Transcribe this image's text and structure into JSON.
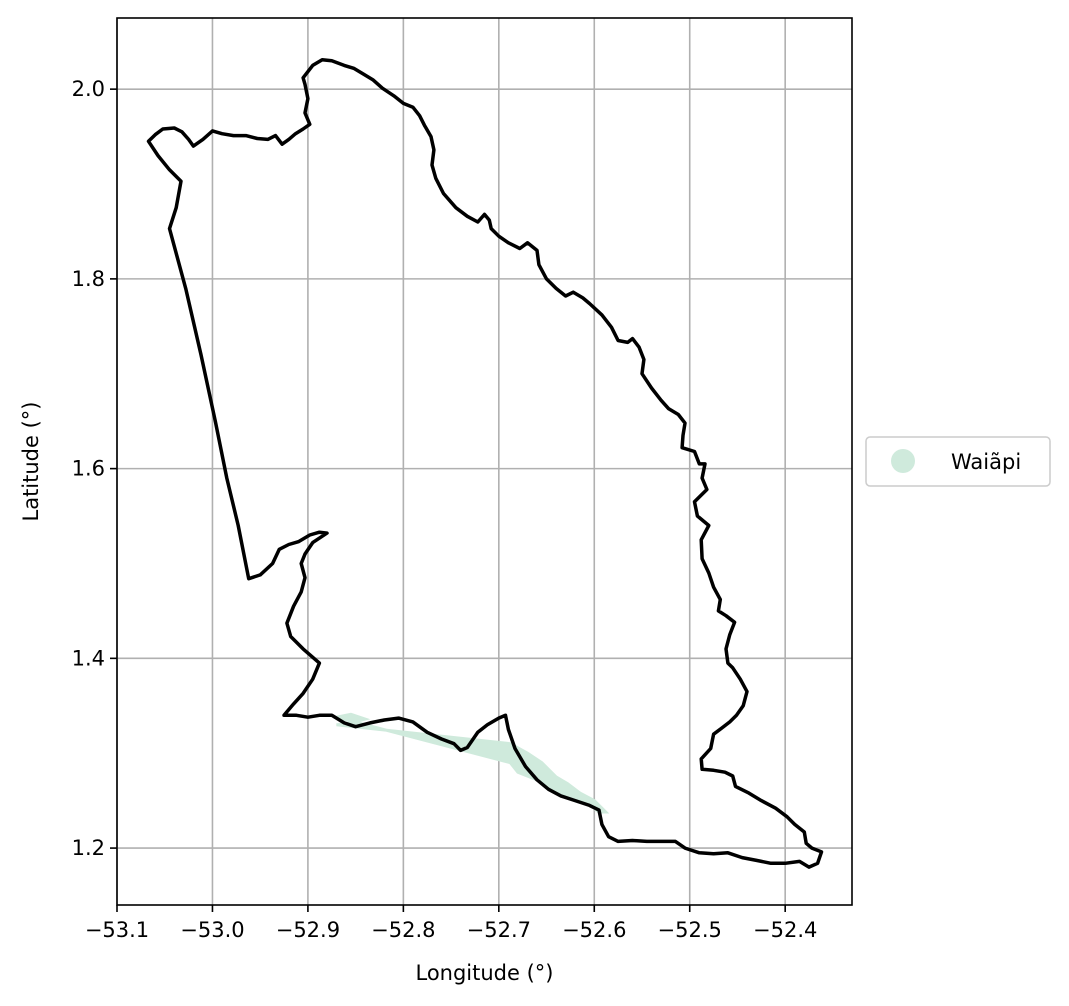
{
  "chart_data": {
    "type": "map",
    "xlabel": "Longitude (°)",
    "ylabel": "Latitude (°)",
    "xlim": [
      -53.1,
      -52.33
    ],
    "ylim": [
      1.14,
      2.075
    ],
    "x_ticks": [
      -53.1,
      -53.0,
      -52.9,
      -52.8,
      -52.7,
      -52.6,
      -52.5,
      -52.4
    ],
    "x_tick_labels": [
      "−53.1",
      "−53.0",
      "−52.9",
      "−52.8",
      "−52.7",
      "−52.6",
      "−52.5",
      "−52.4"
    ],
    "y_ticks": [
      1.2,
      1.4,
      1.6,
      1.8,
      2.0
    ],
    "y_tick_labels": [
      "1.2",
      "1.4",
      "1.6",
      "1.8",
      "2.0"
    ],
    "grid": true,
    "legend": {
      "placement": "center-right-outside",
      "entries": [
        {
          "label": "Waiãpi",
          "color": "#cfeadc",
          "marker": "circle"
        }
      ]
    },
    "boundary": {
      "color": "#000000",
      "coords": [
        [
          -53.067,
          1.945
        ],
        [
          -53.06,
          1.952
        ],
        [
          -53.052,
          1.958
        ],
        [
          -53.04,
          1.959
        ],
        [
          -53.032,
          1.955
        ],
        [
          -53.025,
          1.947
        ],
        [
          -53.02,
          1.94
        ],
        [
          -53.01,
          1.947
        ],
        [
          -53.0,
          1.956
        ],
        [
          -52.99,
          1.953
        ],
        [
          -52.978,
          1.951
        ],
        [
          -52.965,
          1.951
        ],
        [
          -52.953,
          1.948
        ],
        [
          -52.942,
          1.947
        ],
        [
          -52.934,
          1.951
        ],
        [
          -52.927,
          1.942
        ],
        [
          -52.92,
          1.947
        ],
        [
          -52.913,
          1.953
        ],
        [
          -52.905,
          1.958
        ],
        [
          -52.898,
          1.963
        ],
        [
          -52.903,
          1.975
        ],
        [
          -52.9,
          1.99
        ],
        [
          -52.903,
          2.005
        ],
        [
          -52.905,
          2.012
        ],
        [
          -52.895,
          2.025
        ],
        [
          -52.885,
          2.031
        ],
        [
          -52.875,
          2.03
        ],
        [
          -52.862,
          2.025
        ],
        [
          -52.852,
          2.022
        ],
        [
          -52.842,
          2.016
        ],
        [
          -52.832,
          2.01
        ],
        [
          -52.822,
          2.001
        ],
        [
          -52.81,
          1.993
        ],
        [
          -52.8,
          1.985
        ],
        [
          -52.79,
          1.981
        ],
        [
          -52.783,
          1.972
        ],
        [
          -52.778,
          1.962
        ],
        [
          -52.771,
          1.95
        ],
        [
          -52.768,
          1.936
        ],
        [
          -52.77,
          1.92
        ],
        [
          -52.766,
          1.906
        ],
        [
          -52.758,
          1.89
        ],
        [
          -52.745,
          1.875
        ],
        [
          -52.733,
          1.866
        ],
        [
          -52.722,
          1.86
        ],
        [
          -52.715,
          1.868
        ],
        [
          -52.71,
          1.862
        ],
        [
          -52.708,
          1.853
        ],
        [
          -52.7,
          1.845
        ],
        [
          -52.69,
          1.838
        ],
        [
          -52.678,
          1.832
        ],
        [
          -52.67,
          1.838
        ],
        [
          -52.66,
          1.83
        ],
        [
          -52.658,
          1.815
        ],
        [
          -52.65,
          1.8
        ],
        [
          -52.64,
          1.79
        ],
        [
          -52.63,
          1.782
        ],
        [
          -52.622,
          1.786
        ],
        [
          -52.612,
          1.78
        ],
        [
          -52.605,
          1.774
        ],
        [
          -52.592,
          1.762
        ],
        [
          -52.582,
          1.749
        ],
        [
          -52.575,
          1.735
        ],
        [
          -52.565,
          1.733
        ],
        [
          -52.56,
          1.737
        ],
        [
          -52.553,
          1.728
        ],
        [
          -52.548,
          1.715
        ],
        [
          -52.55,
          1.7
        ],
        [
          -52.54,
          1.685
        ],
        [
          -52.53,
          1.672
        ],
        [
          -52.522,
          1.663
        ],
        [
          -52.512,
          1.657
        ],
        [
          -52.505,
          1.648
        ],
        [
          -52.507,
          1.635
        ],
        [
          -52.508,
          1.622
        ],
        [
          -52.495,
          1.618
        ],
        [
          -52.49,
          1.605
        ],
        [
          -52.484,
          1.605
        ],
        [
          -52.487,
          1.59
        ],
        [
          -52.482,
          1.578
        ],
        [
          -52.495,
          1.565
        ],
        [
          -52.492,
          1.55
        ],
        [
          -52.48,
          1.54
        ],
        [
          -52.488,
          1.525
        ],
        [
          -52.487,
          1.505
        ],
        [
          -52.48,
          1.49
        ],
        [
          -52.475,
          1.475
        ],
        [
          -52.468,
          1.462
        ],
        [
          -52.47,
          1.45
        ],
        [
          -52.462,
          1.445
        ],
        [
          -52.453,
          1.438
        ],
        [
          -52.458,
          1.425
        ],
        [
          -52.462,
          1.41
        ],
        [
          -52.46,
          1.395
        ],
        [
          -52.455,
          1.39
        ],
        [
          -52.447,
          1.378
        ],
        [
          -52.44,
          1.365
        ],
        [
          -52.444,
          1.35
        ],
        [
          -52.451,
          1.34
        ],
        [
          -52.458,
          1.333
        ],
        [
          -52.467,
          1.326
        ],
        [
          -52.475,
          1.32
        ],
        [
          -52.478,
          1.305
        ],
        [
          -52.488,
          1.294
        ],
        [
          -52.487,
          1.283
        ],
        [
          -52.475,
          1.282
        ],
        [
          -52.463,
          1.28
        ],
        [
          -52.455,
          1.276
        ],
        [
          -52.452,
          1.265
        ],
        [
          -52.438,
          1.258
        ],
        [
          -52.425,
          1.25
        ],
        [
          -52.41,
          1.242
        ],
        [
          -52.398,
          1.233
        ],
        [
          -52.39,
          1.225
        ],
        [
          -52.38,
          1.217
        ],
        [
          -52.378,
          1.205
        ],
        [
          -52.372,
          1.2
        ],
        [
          -52.362,
          1.196
        ],
        [
          -52.366,
          1.184
        ],
        [
          -52.375,
          1.18
        ],
        [
          -52.385,
          1.186
        ],
        [
          -52.4,
          1.184
        ],
        [
          -52.415,
          1.184
        ],
        [
          -52.43,
          1.187
        ],
        [
          -52.445,
          1.19
        ],
        [
          -52.46,
          1.195
        ],
        [
          -52.475,
          1.194
        ],
        [
          -52.49,
          1.195
        ],
        [
          -52.505,
          1.2
        ],
        [
          -52.515,
          1.207
        ],
        [
          -52.53,
          1.207
        ],
        [
          -52.545,
          1.207
        ],
        [
          -52.56,
          1.208
        ],
        [
          -52.575,
          1.207
        ],
        [
          -52.585,
          1.212
        ],
        [
          -52.592,
          1.225
        ],
        [
          -52.595,
          1.24
        ],
        [
          -52.605,
          1.245
        ],
        [
          -52.62,
          1.25
        ],
        [
          -52.635,
          1.255
        ],
        [
          -52.648,
          1.262
        ],
        [
          -52.66,
          1.272
        ],
        [
          -52.672,
          1.286
        ],
        [
          -52.683,
          1.305
        ],
        [
          -52.69,
          1.325
        ],
        [
          -52.693,
          1.34
        ],
        [
          -52.7,
          1.337
        ],
        [
          -52.712,
          1.33
        ],
        [
          -52.722,
          1.322
        ],
        [
          -52.733,
          1.306
        ],
        [
          -52.74,
          1.303
        ],
        [
          -52.747,
          1.31
        ],
        [
          -52.76,
          1.315
        ],
        [
          -52.775,
          1.322
        ],
        [
          -52.79,
          1.333
        ],
        [
          -52.805,
          1.337
        ],
        [
          -52.82,
          1.335
        ],
        [
          -52.835,
          1.332
        ],
        [
          -52.85,
          1.328
        ],
        [
          -52.862,
          1.332
        ],
        [
          -52.875,
          1.34
        ],
        [
          -52.888,
          1.34
        ],
        [
          -52.9,
          1.338
        ],
        [
          -52.912,
          1.34
        ],
        [
          -52.925,
          1.34
        ],
        [
          -52.915,
          1.352
        ],
        [
          -52.905,
          1.363
        ],
        [
          -52.895,
          1.378
        ],
        [
          -52.888,
          1.395
        ],
        [
          -52.905,
          1.41
        ],
        [
          -52.918,
          1.423
        ],
        [
          -52.922,
          1.437
        ],
        [
          -52.915,
          1.455
        ],
        [
          -52.907,
          1.47
        ],
        [
          -52.903,
          1.485
        ],
        [
          -52.907,
          1.5
        ],
        [
          -52.903,
          1.51
        ],
        [
          -52.895,
          1.522
        ],
        [
          -52.88,
          1.532
        ],
        [
          -52.888,
          1.533
        ],
        [
          -52.898,
          1.53
        ],
        [
          -52.91,
          1.523
        ],
        [
          -52.92,
          1.52
        ],
        [
          -52.93,
          1.515
        ],
        [
          -52.937,
          1.5
        ],
        [
          -52.95,
          1.488
        ],
        [
          -52.962,
          1.484
        ],
        [
          -52.973,
          1.54
        ],
        [
          -52.985,
          1.59
        ],
        [
          -52.997,
          1.65
        ],
        [
          -53.012,
          1.72
        ],
        [
          -53.028,
          1.79
        ],
        [
          -53.045,
          1.853
        ],
        [
          -53.038,
          1.875
        ],
        [
          -53.033,
          1.903
        ],
        [
          -53.045,
          1.915
        ],
        [
          -53.057,
          1.93
        ],
        [
          -53.067,
          1.945
        ]
      ]
    },
    "territory_fill": {
      "name": "Waiãpi",
      "color": "#cfeadc",
      "coords": [
        [
          -52.87,
          1.33
        ],
        [
          -52.855,
          1.332
        ],
        [
          -52.84,
          1.336
        ],
        [
          -52.855,
          1.341
        ],
        [
          -52.87,
          1.338
        ],
        [
          -52.688,
          1.29
        ],
        [
          -52.68,
          1.28
        ],
        [
          -52.66,
          1.272
        ],
        [
          -52.645,
          1.262
        ],
        [
          -52.633,
          1.255
        ],
        [
          -52.618,
          1.249
        ],
        [
          -52.605,
          1.246
        ],
        [
          -52.595,
          1.238
        ],
        [
          -52.588,
          1.238
        ],
        [
          -52.6,
          1.25
        ],
        [
          -52.615,
          1.258
        ],
        [
          -52.628,
          1.268
        ],
        [
          -52.64,
          1.275
        ],
        [
          -52.655,
          1.29
        ],
        [
          -52.67,
          1.3
        ],
        [
          -52.688,
          1.31
        ]
      ]
    }
  }
}
